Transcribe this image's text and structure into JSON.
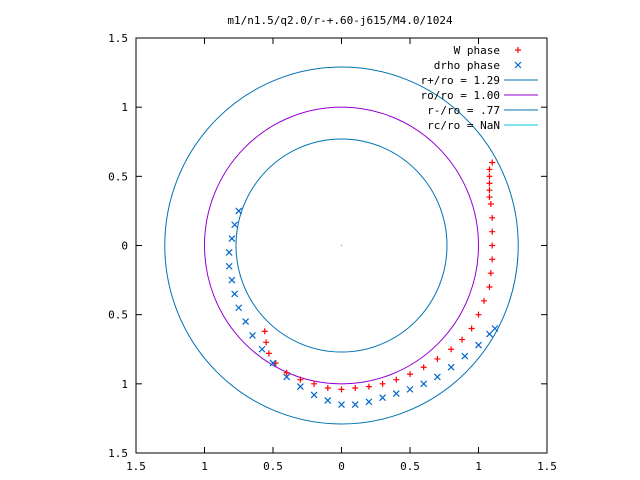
{
  "chart_data": {
    "type": "scatter",
    "title": "m1/n1.5/q2.0/r-+.60-j615/M4.0/1024",
    "xlabel": "",
    "ylabel": "",
    "xlim": [
      -1.5,
      1.5
    ],
    "ylim": [
      -1.5,
      1.5
    ],
    "x_ticks": [
      -1.5,
      -1,
      -0.5,
      0,
      0.5,
      1,
      1.5
    ],
    "y_ticks": [
      -1.5,
      -1,
      -0.5,
      0,
      0.5,
      1,
      1.5
    ],
    "x_tick_labels": [
      "1.5",
      "1",
      "0.5",
      "0",
      "0.5",
      "1",
      "1.5"
    ],
    "y_tick_labels": [
      "1.5",
      "1",
      "0.5",
      "0",
      "0.5",
      "1",
      "1.5"
    ],
    "grid": false,
    "legend_position": "top-right",
    "series": [
      {
        "name": "W phase",
        "marker": "plus",
        "color": "#ff0000",
        "points": [
          [
            1.1,
            0.6
          ],
          [
            1.08,
            0.55
          ],
          [
            1.08,
            0.5
          ],
          [
            1.08,
            0.45
          ],
          [
            1.08,
            0.4
          ],
          [
            1.08,
            0.35
          ],
          [
            1.09,
            0.3
          ],
          [
            1.1,
            0.2
          ],
          [
            1.1,
            0.1
          ],
          [
            1.1,
            0.0
          ],
          [
            1.1,
            -0.1
          ],
          [
            1.09,
            -0.2
          ],
          [
            1.08,
            -0.3
          ],
          [
            1.04,
            -0.4
          ],
          [
            1.0,
            -0.5
          ],
          [
            0.95,
            -0.6
          ],
          [
            0.88,
            -0.68
          ],
          [
            0.8,
            -0.75
          ],
          [
            0.7,
            -0.82
          ],
          [
            0.6,
            -0.88
          ],
          [
            0.5,
            -0.93
          ],
          [
            0.4,
            -0.97
          ],
          [
            0.3,
            -1.0
          ],
          [
            0.2,
            -1.02
          ],
          [
            0.1,
            -1.03
          ],
          [
            0.0,
            -1.04
          ],
          [
            -0.1,
            -1.03
          ],
          [
            -0.2,
            -1.0
          ],
          [
            -0.3,
            -0.97
          ],
          [
            -0.4,
            -0.92
          ],
          [
            -0.48,
            -0.85
          ],
          [
            -0.53,
            -0.78
          ],
          [
            -0.55,
            -0.7
          ],
          [
            -0.56,
            -0.62
          ]
        ]
      },
      {
        "name": "drho phase",
        "marker": "cross",
        "color": "#0066cc",
        "points": [
          [
            -0.75,
            0.25
          ],
          [
            -0.78,
            0.15
          ],
          [
            -0.8,
            0.05
          ],
          [
            -0.82,
            -0.05
          ],
          [
            -0.82,
            -0.15
          ],
          [
            -0.8,
            -0.25
          ],
          [
            -0.78,
            -0.35
          ],
          [
            -0.75,
            -0.45
          ],
          [
            -0.7,
            -0.55
          ],
          [
            -0.65,
            -0.65
          ],
          [
            -0.58,
            -0.75
          ],
          [
            -0.5,
            -0.85
          ],
          [
            -0.4,
            -0.95
          ],
          [
            -0.3,
            -1.02
          ],
          [
            -0.2,
            -1.08
          ],
          [
            -0.1,
            -1.12
          ],
          [
            0.0,
            -1.15
          ],
          [
            0.1,
            -1.15
          ],
          [
            0.2,
            -1.13
          ],
          [
            0.3,
            -1.1
          ],
          [
            0.4,
            -1.07
          ],
          [
            0.5,
            -1.04
          ],
          [
            0.6,
            -1.0
          ],
          [
            0.7,
            -0.95
          ],
          [
            0.8,
            -0.88
          ],
          [
            0.9,
            -0.8
          ],
          [
            1.0,
            -0.72
          ],
          [
            1.08,
            -0.64
          ],
          [
            1.12,
            -0.6
          ]
        ]
      },
      {
        "name": "r+/ro = 1.29",
        "type": "circle",
        "radius": 1.29,
        "color": "#0072b2"
      },
      {
        "name": "ro/ro = 1.00",
        "type": "circle",
        "radius": 1.0,
        "color": "#9400d3"
      },
      {
        "name": "r-/ro = .77",
        "type": "circle",
        "radius": 0.77,
        "color": "#0072b2"
      },
      {
        "name": "rc/ro = NaN",
        "type": "circle",
        "radius": null,
        "color": "#00c8e0"
      }
    ]
  }
}
